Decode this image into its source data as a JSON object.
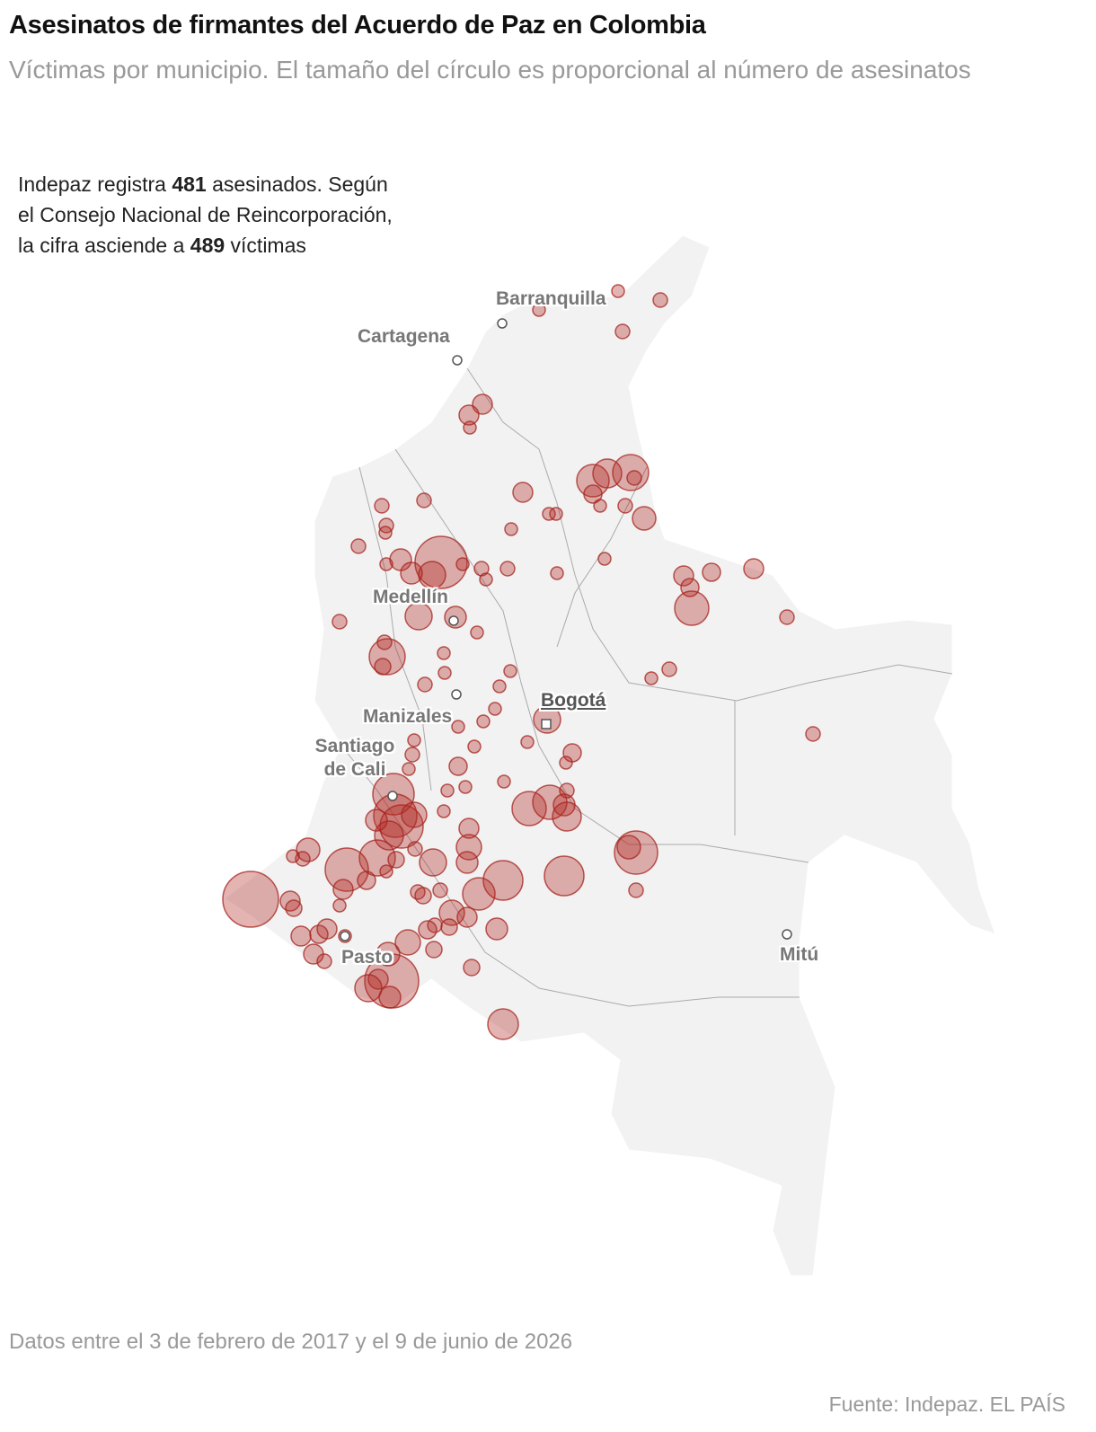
{
  "header": {
    "title": "Asesinatos de firmantes del Acuerdo de Paz en Colombia",
    "subtitle": "Víctimas por municipio. El tamaño del círculo es proporcional al número de asesinatos"
  },
  "annotation": {
    "part1": "Indepaz registra",
    "indepaz_count": 481,
    "part2": "asesinados. Según el Consejo Nacional de Reincorporación, la cifra asciende a",
    "cnr_count": 489,
    "part3": "víctimas"
  },
  "cities": [
    {
      "name": "Barranquilla"
    },
    {
      "name": "Cartagena"
    },
    {
      "name": "Medellín"
    },
    {
      "name": "Bogotá"
    },
    {
      "name": "Manizales"
    },
    {
      "name": "Santiago de Cali"
    },
    {
      "name": "Pasto"
    },
    {
      "name": "Mitú"
    }
  ],
  "footer": {
    "dates": "Datos entre el 3 de febrero de 2017 y el 9 de junio de 2026",
    "source": "Fuente: Indepaz. EL PAÍS"
  }
}
